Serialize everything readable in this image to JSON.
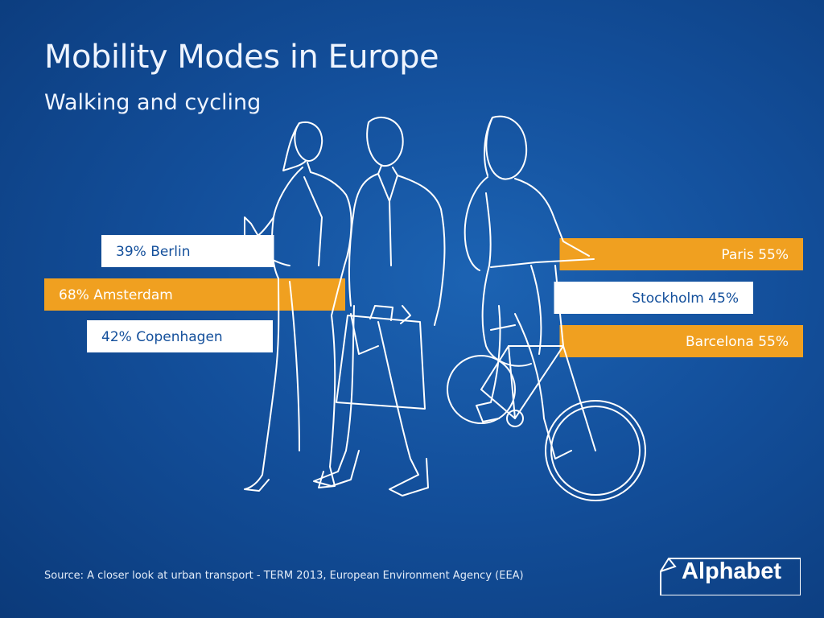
{
  "header": {
    "title": "Mobility Modes in Europe",
    "subtitle": "Walking and cycling"
  },
  "chart_data": {
    "type": "bar",
    "unit": "%",
    "series": [
      {
        "city": "Berlin",
        "value": 39,
        "label": "39%",
        "side": "left",
        "color": "#ffffff"
      },
      {
        "city": "Amsterdam",
        "value": 68,
        "label": "68%",
        "side": "left",
        "color": "#f0a020"
      },
      {
        "city": "Copenhagen",
        "value": 42,
        "label": "42%",
        "side": "left",
        "color": "#ffffff"
      },
      {
        "city": "Paris",
        "value": 55,
        "label": "55%",
        "side": "right",
        "color": "#f0a020"
      },
      {
        "city": "Stockholm",
        "value": 45,
        "label": "45%",
        "side": "right",
        "color": "#ffffff"
      },
      {
        "city": "Barcelona",
        "value": 55,
        "label": "55%",
        "side": "right",
        "color": "#f0a020"
      }
    ]
  },
  "footer": {
    "source": "Source: A closer look at urban transport - TERM 2013, European Environment Agency (EEA)",
    "brand": "Alphabet"
  },
  "colors": {
    "background": "#134f9b",
    "orange": "#f0a020",
    "white": "#ffffff",
    "blue_text": "#134f9b"
  }
}
